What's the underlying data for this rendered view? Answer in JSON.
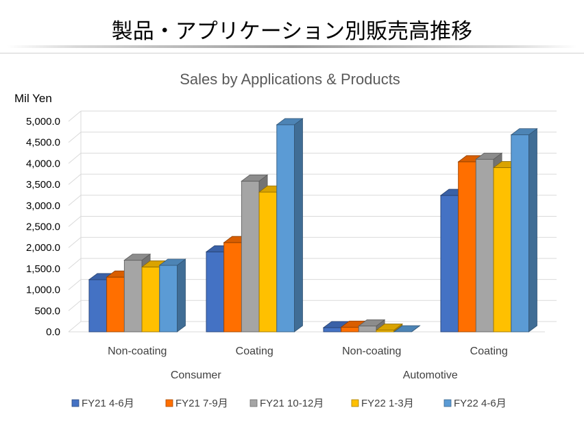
{
  "slide": {
    "title": "製品・アプリケーション別販売高推移"
  },
  "chart_data": {
    "type": "bar",
    "title": "Sales by Applications & Products",
    "ylabel": "Mil Yen",
    "xlabel": "",
    "ylim": [
      0,
      5000
    ],
    "ytick_step": 500,
    "ytick_labels": [
      "0.0",
      "500.0",
      "1,000.0",
      "1,500.0",
      "2,000.0",
      "2,500.0",
      "3,000.0",
      "3,500.0",
      "4,000.0",
      "4,500.0",
      "5,000.0"
    ],
    "categories": [
      "Non-coating",
      "Coating",
      "Non-coating",
      "Coating"
    ],
    "groups": [
      {
        "label": "Consumer",
        "span": [
          0,
          1
        ]
      },
      {
        "label": "Automotive",
        "span": [
          2,
          3
        ]
      }
    ],
    "grid": true,
    "legend_position": "bottom",
    "series": [
      {
        "name": "FY21 4-6月",
        "color": "#4472C4",
        "values": [
          1240,
          1900,
          100,
          3240
        ]
      },
      {
        "name": "FY21 7-9月",
        "color": "#FF6F00",
        "values": [
          1300,
          2120,
          110,
          4040
        ]
      },
      {
        "name": "FY21 10-12月",
        "color": "#A5A5A5",
        "values": [
          1700,
          3580,
          140,
          4100
        ]
      },
      {
        "name": "FY22 1-3月",
        "color": "#FFC000",
        "values": [
          1540,
          3320,
          40,
          3900
        ]
      },
      {
        "name": "FY22 4-6月",
        "color": "#5B9BD5",
        "values": [
          1580,
          4920,
          0,
          4680
        ]
      }
    ]
  }
}
